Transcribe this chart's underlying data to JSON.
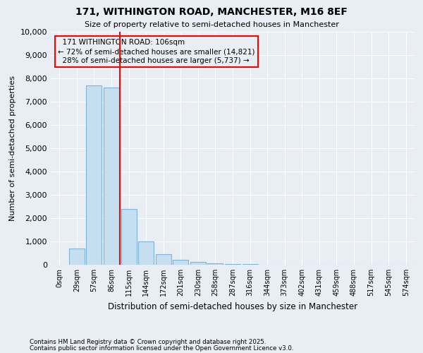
{
  "title1": "171, WITHINGTON ROAD, MANCHESTER, M16 8EF",
  "title2": "Size of property relative to semi-detached houses in Manchester",
  "xlabel": "Distribution of semi-detached houses by size in Manchester",
  "ylabel": "Number of semi-detached properties",
  "bar_values": [
    0,
    700,
    7700,
    7600,
    2400,
    1000,
    450,
    200,
    120,
    70,
    40,
    20,
    10,
    5,
    5,
    3,
    2,
    1,
    1,
    0,
    0
  ],
  "bar_labels": [
    "0sqm",
    "29sqm",
    "57sqm",
    "86sqm",
    "115sqm",
    "144sqm",
    "172sqm",
    "201sqm",
    "230sqm",
    "258sqm",
    "287sqm",
    "316sqm",
    "344sqm",
    "373sqm",
    "402sqm",
    "431sqm",
    "459sqm",
    "488sqm",
    "517sqm",
    "545sqm",
    "574sqm"
  ],
  "bar_color": "#c5dff0",
  "bar_edge_color": "#7fb3d3",
  "property_label": "171 WITHINGTON ROAD: 106sqm",
  "pct_smaller": 72,
  "n_smaller": 14821,
  "pct_larger": 28,
  "n_larger": 5737,
  "vline_color": "red",
  "vline_x_index": 3.5,
  "annotation_box_color": "red",
  "ylim": [
    0,
    10000
  ],
  "yticks": [
    0,
    1000,
    2000,
    3000,
    4000,
    5000,
    6000,
    7000,
    8000,
    9000,
    10000
  ],
  "footer1": "Contains HM Land Registry data © Crown copyright and database right 2025.",
  "footer2": "Contains public sector information licensed under the Open Government Licence v3.0.",
  "background_color": "#e8eef4"
}
